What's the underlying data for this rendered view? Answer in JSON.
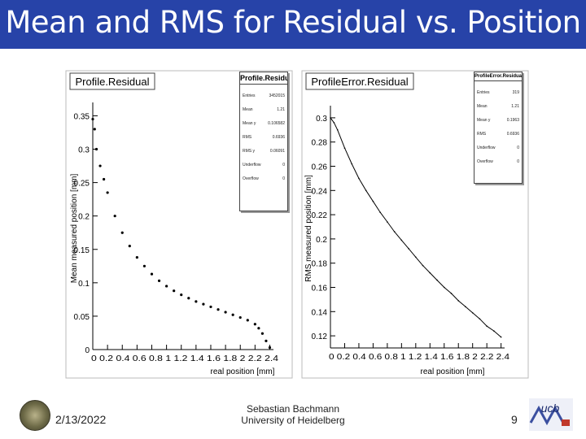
{
  "slide": {
    "title": "Mean and RMS for Residual vs. Position",
    "date": "2/13/2022",
    "author_line1": "Sebastian Bachmann",
    "author_line2": "University of Heidelberg",
    "page": "9",
    "logo_text": "ucb"
  },
  "colors": {
    "title_bar": "#2743a8",
    "title_text": "#ffffff",
    "data": "#000000"
  },
  "chart_data": [
    {
      "type": "scatter",
      "title": "Profile.Residual",
      "xlabel": "real position [mm]",
      "ylabel": "Mean measured position [mm]",
      "xlim": [
        0,
        2.45
      ],
      "ylim": [
        0,
        0.37
      ],
      "xticks": [
        0,
        0.2,
        0.4,
        0.6,
        0.8,
        1,
        1.2,
        1.4,
        1.6,
        1.8,
        2,
        2.2,
        2.4
      ],
      "xtick_labels": [
        "0",
        "0.2",
        "0.4",
        "0.6",
        "0.8",
        "1",
        "1.2",
        "1.4",
        "1.6",
        "1.8",
        "2",
        "2.2",
        "2.4"
      ],
      "xtick_text": "0 0.2 0.4 0.6 0.8 1 1.2 1.4 1.6 1.8 2 2.2 2.4",
      "yticks": [
        0,
        0.05,
        0.1,
        0.15,
        0.2,
        0.25,
        0.3,
        0.35
      ],
      "ytick_labels": [
        "0",
        "0.05",
        "0.1",
        "0.15",
        "0.2",
        "0.25",
        "0.3",
        "0.35"
      ],
      "x": [
        0,
        0.025,
        0.05,
        0.1,
        0.15,
        0.2,
        0.3,
        0.4,
        0.5,
        0.6,
        0.7,
        0.8,
        0.9,
        1.0,
        1.1,
        1.2,
        1.3,
        1.4,
        1.5,
        1.6,
        1.7,
        1.8,
        1.9,
        2.0,
        2.1,
        2.2,
        2.25,
        2.3,
        2.35,
        2.4
      ],
      "y": [
        0.345,
        0.33,
        0.3,
        0.275,
        0.255,
        0.235,
        0.2,
        0.175,
        0.155,
        0.138,
        0.125,
        0.113,
        0.103,
        0.095,
        0.088,
        0.082,
        0.077,
        0.072,
        0.068,
        0.064,
        0.06,
        0.056,
        0.052,
        0.048,
        0.044,
        0.038,
        0.032,
        0.024,
        0.013,
        0.003
      ],
      "stats": {
        "title": "Profile.Residual",
        "rows": [
          {
            "label": "Entries",
            "value": "3452015"
          },
          {
            "label": "Mean",
            "value": "1.21"
          },
          {
            "label": "Mean y",
            "value": "0.106582"
          },
          {
            "label": "RMS",
            "value": "0.6936"
          },
          {
            "label": "RMS y",
            "value": "0.06091"
          },
          {
            "label": "Underflow",
            "value": "0"
          },
          {
            "label": "Overflow",
            "value": "0"
          }
        ]
      }
    },
    {
      "type": "line",
      "title": "ProfileError.Residual",
      "xlabel": "real position [mm]",
      "ylabel": "RMS measured position [mm]",
      "xlim": [
        0,
        2.45
      ],
      "ylim": [
        0.11,
        0.31
      ],
      "xticks": [
        0,
        0.2,
        0.4,
        0.6,
        0.8,
        1,
        1.2,
        1.4,
        1.6,
        1.8,
        2,
        2.2,
        2.4
      ],
      "xtick_labels": [
        "0",
        "0.2",
        "0.4",
        "0.6",
        "0.8",
        "1",
        "1.2",
        "1.4",
        "1.6",
        "1.8",
        "2",
        "2.2",
        "2.4"
      ],
      "xtick_text": "0 0.2 0.4 0.6 0.8 1 1.2 1.4 1.6 1.8 2 2.2 2.4",
      "yticks": [
        0.12,
        0.14,
        0.16,
        0.18,
        0.2,
        0.22,
        0.24,
        0.26,
        0.28,
        0.3
      ],
      "ytick_labels": [
        "0.12",
        "0.14",
        "0.16",
        "0.18",
        "0.2",
        "0.22",
        "0.24",
        "0.26",
        "0.28",
        "0.3"
      ],
      "x": [
        0,
        0.05,
        0.1,
        0.2,
        0.3,
        0.4,
        0.5,
        0.6,
        0.7,
        0.8,
        0.9,
        1.0,
        1.1,
        1.2,
        1.3,
        1.4,
        1.5,
        1.6,
        1.7,
        1.8,
        1.9,
        2.0,
        2.1,
        2.2,
        2.3,
        2.4
      ],
      "y": [
        0.3,
        0.296,
        0.29,
        0.275,
        0.262,
        0.25,
        0.24,
        0.231,
        0.222,
        0.214,
        0.206,
        0.199,
        0.192,
        0.185,
        0.178,
        0.172,
        0.166,
        0.16,
        0.155,
        0.149,
        0.144,
        0.139,
        0.134,
        0.128,
        0.124,
        0.119
      ],
      "stats": {
        "title": "ProfileError.Residual",
        "rows": [
          {
            "label": "Entries",
            "value": "319"
          },
          {
            "label": "Mean",
            "value": "1.21"
          },
          {
            "label": "Mean y",
            "value": "0.1963"
          },
          {
            "label": "RMS",
            "value": "0.6936"
          },
          {
            "label": "Underflow",
            "value": "0"
          },
          {
            "label": "Overflow",
            "value": "0"
          }
        ]
      }
    }
  ]
}
